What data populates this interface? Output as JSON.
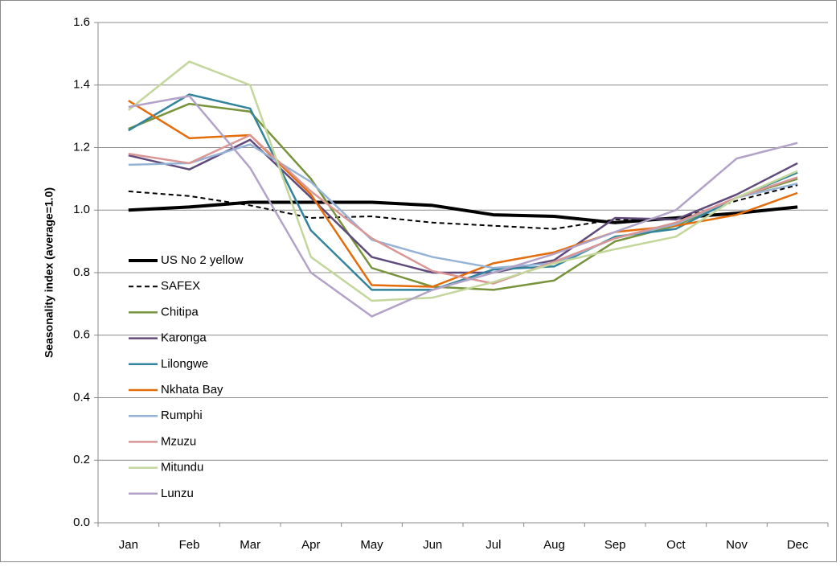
{
  "chart_data": {
    "type": "line",
    "ylabel": "Seasonality index (average=1.0)",
    "categories": [
      "Jan",
      "Feb",
      "Mar",
      "Apr",
      "May",
      "Jun",
      "Jul",
      "Aug",
      "Sep",
      "Oct",
      "Nov",
      "Dec"
    ],
    "ylim": [
      0,
      1.6
    ],
    "yticks": [
      {
        "value": 0,
        "label": "0.0"
      },
      {
        "value": 0.2,
        "label": "0.2"
      },
      {
        "value": 0.4,
        "label": "0.4"
      },
      {
        "value": 0.6,
        "label": "0.6"
      },
      {
        "value": 0.8,
        "label": "0.8"
      },
      {
        "value": 1,
        "label": "1.0"
      },
      {
        "value": 1.2,
        "label": "1.2"
      },
      {
        "value": 1.4,
        "label": "1.4"
      },
      {
        "value": 1.6,
        "label": "1.6"
      }
    ],
    "grid": true,
    "legend": "left",
    "series": [
      {
        "name": "US No 2 yellow",
        "color": "#000000",
        "width": 4,
        "dash": false,
        "values": [
          1.0,
          1.01,
          1.025,
          1.025,
          1.025,
          1.015,
          0.985,
          0.98,
          0.96,
          0.975,
          0.99,
          1.01
        ]
      },
      {
        "name": "SAFEX",
        "color": "#000000",
        "width": 2,
        "dash": true,
        "values": [
          1.06,
          1.045,
          1.015,
          0.975,
          0.98,
          0.96,
          0.95,
          0.94,
          0.97,
          0.97,
          1.03,
          1.08
        ]
      },
      {
        "name": "Chitipa",
        "color": "#77933c",
        "width": 2.5,
        "dash": false,
        "values": [
          1.26,
          1.34,
          1.315,
          1.1,
          0.815,
          0.755,
          0.745,
          0.775,
          0.9,
          0.95,
          1.04,
          1.1
        ]
      },
      {
        "name": "Karonga",
        "color": "#604a7b",
        "width": 2.5,
        "dash": false,
        "values": [
          1.175,
          1.13,
          1.225,
          1.04,
          0.85,
          0.8,
          0.8,
          0.84,
          0.975,
          0.97,
          1.05,
          1.15
        ]
      },
      {
        "name": "Lilongwe",
        "color": "#31849b",
        "width": 2.5,
        "dash": false,
        "values": [
          1.255,
          1.37,
          1.325,
          0.935,
          0.745,
          0.745,
          0.81,
          0.82,
          0.915,
          0.94,
          1.04,
          1.12
        ]
      },
      {
        "name": "Nkhata Bay",
        "color": "#e46c0a",
        "width": 2.5,
        "dash": false,
        "values": [
          1.35,
          1.23,
          1.24,
          1.05,
          0.76,
          0.755,
          0.83,
          0.865,
          0.93,
          0.95,
          0.985,
          1.055
        ]
      },
      {
        "name": "Rumphi",
        "color": "#95b3d7",
        "width": 2.5,
        "dash": false,
        "values": [
          1.145,
          1.15,
          1.21,
          1.09,
          0.905,
          0.85,
          0.815,
          0.83,
          0.91,
          0.955,
          1.04,
          1.085
        ]
      },
      {
        "name": "Mzuzu",
        "color": "#d99694",
        "width": 2.5,
        "dash": false,
        "values": [
          1.18,
          1.15,
          1.24,
          1.06,
          0.91,
          0.805,
          0.765,
          0.835,
          0.91,
          0.96,
          1.04,
          1.105
        ]
      },
      {
        "name": "Mitundu",
        "color": "#c3d69b",
        "width": 2.5,
        "dash": false,
        "values": [
          1.32,
          1.475,
          1.4,
          0.85,
          0.71,
          0.72,
          0.77,
          0.83,
          0.875,
          0.915,
          1.04,
          1.125
        ]
      },
      {
        "name": "Lunzu",
        "color": "#b3a2c7",
        "width": 2.5,
        "dash": false,
        "values": [
          1.33,
          1.365,
          1.135,
          0.8,
          0.66,
          0.745,
          0.8,
          0.86,
          0.93,
          1.0,
          1.165,
          1.215
        ]
      }
    ]
  }
}
